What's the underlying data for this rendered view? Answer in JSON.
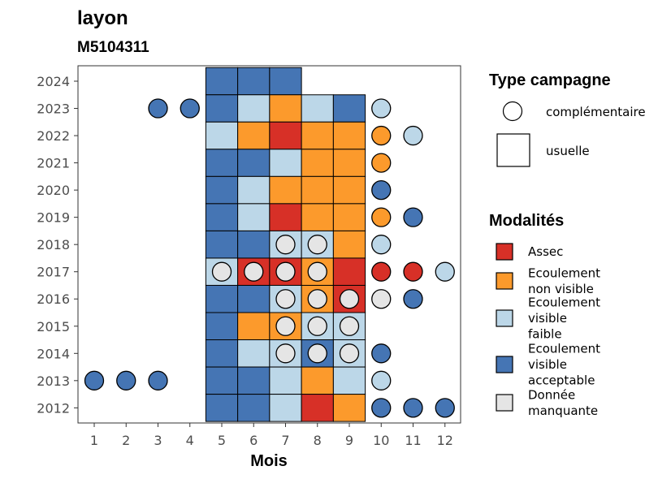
{
  "chart_data": {
    "type": "heatmap",
    "title": "layon",
    "subtitle": "M5104311",
    "xlabel": "Mois",
    "ylabel": "",
    "x_ticks": [
      "1",
      "2",
      "3",
      "4",
      "5",
      "6",
      "7",
      "8",
      "9",
      "10",
      "11",
      "12"
    ],
    "y_ticks": [
      "2012",
      "2013",
      "2014",
      "2015",
      "2016",
      "2017",
      "2018",
      "2019",
      "2020",
      "2021",
      "2022",
      "2023",
      "2024"
    ],
    "legend_shape": {
      "title": "Type campagne",
      "entries": [
        {
          "key": "complementaire",
          "label": "complémentaire"
        },
        {
          "key": "usuelle",
          "label": "usuelle"
        }
      ]
    },
    "legend_color": {
      "title": "Modalités",
      "entries": [
        {
          "key": "assec",
          "lines": [
            "Assec"
          ],
          "color": "#d73027"
        },
        {
          "key": "nv",
          "lines": [
            "Ecoulement",
            "non visible"
          ],
          "color": "#fc9a2c"
        },
        {
          "key": "vf",
          "lines": [
            "Ecoulement",
            "visible",
            "faible"
          ],
          "color": "#bcd7e8"
        },
        {
          "key": "va",
          "lines": [
            "Ecoulement",
            "visible",
            "acceptable"
          ],
          "color": "#4575b4"
        },
        {
          "key": "dm",
          "lines": [
            "Donnée",
            "manquante"
          ],
          "color": "#e5e5e5"
        }
      ]
    },
    "usuelle": [
      {
        "year": 2024,
        "cells": {
          "5": "va",
          "6": "va",
          "7": "va"
        }
      },
      {
        "year": 2023,
        "cells": {
          "5": "va",
          "6": "vf",
          "7": "nv",
          "8": "vf",
          "9": "va"
        }
      },
      {
        "year": 2022,
        "cells": {
          "5": "vf",
          "6": "nv",
          "7": "assec",
          "8": "nv",
          "9": "nv"
        }
      },
      {
        "year": 2021,
        "cells": {
          "5": "va",
          "6": "va",
          "7": "vf",
          "8": "nv",
          "9": "nv"
        }
      },
      {
        "year": 2020,
        "cells": {
          "5": "va",
          "6": "vf",
          "7": "nv",
          "8": "nv",
          "9": "nv"
        }
      },
      {
        "year": 2019,
        "cells": {
          "5": "va",
          "6": "vf",
          "7": "assec",
          "8": "nv",
          "9": "nv"
        }
      },
      {
        "year": 2018,
        "cells": {
          "5": "va",
          "6": "va",
          "7": "vf",
          "8": "vf",
          "9": "nv"
        }
      },
      {
        "year": 2017,
        "cells": {
          "5": "vf",
          "6": "assec",
          "7": "assec",
          "8": "nv",
          "9": "assec"
        }
      },
      {
        "year": 2016,
        "cells": {
          "5": "va",
          "6": "va",
          "7": "vf",
          "8": "nv",
          "9": "assec"
        }
      },
      {
        "year": 2015,
        "cells": {
          "5": "va",
          "6": "nv",
          "7": "nv",
          "8": "vf",
          "9": "vf"
        }
      },
      {
        "year": 2014,
        "cells": {
          "5": "va",
          "6": "vf",
          "7": "vf",
          "8": "va",
          "9": "vf"
        }
      },
      {
        "year": 2013,
        "cells": {
          "5": "va",
          "6": "va",
          "7": "vf",
          "8": "nv",
          "9": "vf"
        }
      },
      {
        "year": 2012,
        "cells": {
          "5": "va",
          "6": "va",
          "7": "vf",
          "8": "assec",
          "9": "nv"
        }
      }
    ],
    "complementaire": [
      {
        "year": 2023,
        "cells": {
          "3": "va",
          "4": "va",
          "10": "vf"
        }
      },
      {
        "year": 2022,
        "cells": {
          "10": "nv",
          "11": "vf"
        }
      },
      {
        "year": 2021,
        "cells": {
          "10": "nv"
        }
      },
      {
        "year": 2020,
        "cells": {
          "10": "va"
        }
      },
      {
        "year": 2019,
        "cells": {
          "10": "nv",
          "11": "va"
        }
      },
      {
        "year": 2018,
        "cells": {
          "7": "dm",
          "8": "dm",
          "10": "vf"
        }
      },
      {
        "year": 2017,
        "cells": {
          "5": "dm",
          "6": "dm",
          "7": "dm",
          "8": "dm",
          "10": "assec",
          "11": "assec",
          "12": "vf"
        }
      },
      {
        "year": 2016,
        "cells": {
          "7": "dm",
          "8": "dm",
          "9": "dm",
          "10": "dm",
          "11": "va"
        }
      },
      {
        "year": 2015,
        "cells": {
          "7": "dm",
          "8": "dm",
          "9": "dm"
        }
      },
      {
        "year": 2014,
        "cells": {
          "7": "dm",
          "8": "dm",
          "9": "dm",
          "10": "va"
        }
      },
      {
        "year": 2013,
        "cells": {
          "1": "va",
          "2": "va",
          "3": "va",
          "10": "vf"
        }
      },
      {
        "year": 2012,
        "cells": {
          "10": "va",
          "11": "va",
          "12": "va"
        }
      }
    ]
  }
}
